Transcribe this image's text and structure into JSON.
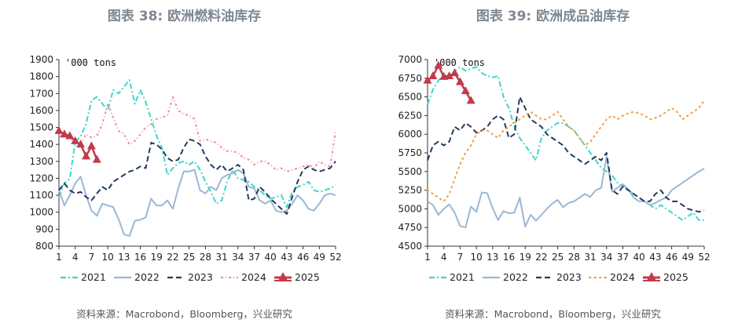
{
  "chart_data": [
    {
      "type": "line",
      "title": "图表 38: 欧洲燃料油库存",
      "unit_label": "'000 tons",
      "ylim": [
        800,
        1900
      ],
      "yticks": [
        800,
        900,
        1000,
        1100,
        1200,
        1300,
        1400,
        1500,
        1600,
        1700,
        1800,
        1900
      ],
      "xlim": [
        1,
        52
      ],
      "xticks": [
        1,
        4,
        7,
        10,
        13,
        16,
        19,
        22,
        25,
        28,
        31,
        34,
        37,
        40,
        43,
        46,
        49,
        52
      ],
      "source": "资料来源：Macrobond，Bloomberg，兴业研究",
      "series": [
        {
          "name": "2021",
          "color": "#3fd6c8",
          "style": "dashdot",
          "values": [
            1090,
            1170,
            1200,
            1410,
            1450,
            1520,
            1660,
            1680,
            1640,
            1600,
            1720,
            1700,
            1740,
            1780,
            1640,
            1720,
            1650,
            1550,
            1450,
            1380,
            1220,
            1260,
            1290,
            1300,
            1280,
            1300,
            1250,
            1180,
            1120,
            1050,
            1070,
            1180,
            1250,
            1200,
            1190,
            1180,
            1150,
            1130,
            1100,
            1080,
            1090,
            1100,
            1030,
            1120,
            1150,
            1160,
            1180,
            1130,
            1120,
            1130,
            1140,
            1160
          ]
        },
        {
          "name": "2022",
          "color": "#9ab8d5",
          "style": "solid",
          "values": [
            1130,
            1040,
            1100,
            1170,
            1210,
            1100,
            1010,
            980,
            1050,
            1040,
            1030,
            960,
            870,
            860,
            950,
            955,
            970,
            1080,
            1040,
            1040,
            1070,
            1020,
            1140,
            1240,
            1240,
            1250,
            1130,
            1110,
            1150,
            1130,
            1200,
            1220,
            1230,
            1250,
            1230,
            1150,
            1140,
            1070,
            1050,
            1070,
            1010,
            1000,
            1010,
            1050,
            1100,
            1070,
            1020,
            1010,
            1050,
            1100,
            1110,
            1100
          ]
        },
        {
          "name": "2023",
          "color": "#243a5e",
          "style": "dashed",
          "values": [
            1130,
            1170,
            1130,
            1110,
            1120,
            1090,
            1070,
            1110,
            1150,
            1130,
            1180,
            1200,
            1220,
            1240,
            1250,
            1270,
            1260,
            1410,
            1400,
            1370,
            1320,
            1300,
            1310,
            1380,
            1430,
            1420,
            1400,
            1330,
            1280,
            1250,
            1280,
            1240,
            1260,
            1280,
            1250,
            1070,
            1080,
            1150,
            1120,
            1080,
            1050,
            1020,
            990,
            1090,
            1180,
            1250,
            1270,
            1250,
            1240,
            1250,
            1260,
            1300
          ]
        },
        {
          "name": "2024",
          "color": "#f08e9c",
          "style": "dashdotdot",
          "values": [
            1450,
            1440,
            1430,
            1420,
            1400,
            1460,
            1440,
            1450,
            1520,
            1640,
            1560,
            1480,
            1460,
            1400,
            1420,
            1460,
            1500,
            1520,
            1550,
            1560,
            1570,
            1680,
            1600,
            1580,
            1570,
            1550,
            1420,
            1430,
            1420,
            1410,
            1380,
            1360,
            1360,
            1350,
            1320,
            1310,
            1280,
            1300,
            1300,
            1280,
            1250,
            1260,
            1240,
            1250,
            1260,
            1270,
            1280,
            1260,
            1300,
            1280,
            1270,
            1480
          ]
        },
        {
          "name": "2025",
          "color": "#c23b4a",
          "style": "triangle",
          "values": [
            1480,
            1460,
            1450,
            1420,
            1400,
            1330,
            1390,
            1310
          ]
        }
      ]
    },
    {
      "type": "line",
      "title": "图表 39: 欧洲成品油库存",
      "unit_label": "'000 tons",
      "ylim": [
        4500,
        7000
      ],
      "yticks": [
        4500,
        4750,
        5000,
        5250,
        5500,
        5750,
        6000,
        6250,
        6500,
        6750,
        7000
      ],
      "xlim": [
        1,
        52
      ],
      "xticks": [
        1,
        4,
        7,
        10,
        13,
        16,
        19,
        22,
        25,
        28,
        31,
        34,
        37,
        40,
        43,
        46,
        49,
        52
      ],
      "source": "资料来源：Macrobond，Bloomberg，兴业研究",
      "series": [
        {
          "name": "2021",
          "color": "#3fd6c8",
          "style": "dashdot",
          "values": [
            6400,
            6600,
            6720,
            6800,
            6750,
            6850,
            6900,
            6850,
            6880,
            6900,
            6820,
            6780,
            6760,
            6780,
            6500,
            6350,
            6100,
            5950,
            5850,
            5750,
            5650,
            5950,
            6050,
            6100,
            6150,
            6150,
            6100,
            6050,
            5950,
            5850,
            5750,
            5650,
            5550,
            5500,
            5450,
            5350,
            5300,
            5250,
            5200,
            5150,
            5100,
            5050,
            5000,
            5050,
            5000,
            4950,
            4900,
            4850,
            4900,
            4950,
            4850,
            4850
          ]
        },
        {
          "name": "2022",
          "color": "#9ab8d5",
          "style": "solid",
          "values": [
            5100,
            5050,
            4920,
            5000,
            5060,
            4950,
            4770,
            4750,
            5030,
            4960,
            5220,
            5210,
            5010,
            4850,
            4970,
            4940,
            4950,
            5150,
            4760,
            4920,
            4840,
            4920,
            5000,
            5070,
            5120,
            5020,
            5080,
            5100,
            5150,
            5200,
            5160,
            5250,
            5280,
            5700,
            5230,
            5280,
            5330,
            5260,
            5150,
            5100,
            5100,
            5050,
            5080,
            5120,
            5150,
            5250,
            5300,
            5350,
            5400,
            5450,
            5500,
            5540
          ]
        },
        {
          "name": "2023",
          "color": "#243a5e",
          "style": "dashed",
          "values": [
            5650,
            5850,
            5900,
            5850,
            5900,
            6100,
            6050,
            6150,
            6100,
            6020,
            6050,
            6100,
            6200,
            6250,
            6200,
            5950,
            6000,
            6500,
            6350,
            6200,
            6150,
            6100,
            6000,
            5950,
            5900,
            5850,
            5750,
            5700,
            5650,
            5600,
            5650,
            5700,
            5650,
            5750,
            5250,
            5200,
            5300,
            5250,
            5200,
            5150,
            5100,
            5100,
            5200,
            5250,
            5150,
            5100,
            5100,
            5050,
            5000,
            4980,
            4960,
            4980
          ]
        },
        {
          "name": "2024",
          "color": "#f0a040",
          "style": "dotted",
          "values": [
            5250,
            5200,
            5150,
            5100,
            5200,
            5400,
            5600,
            5750,
            5850,
            6000,
            6050,
            6050,
            6000,
            5950,
            6050,
            6100,
            6150,
            6200,
            6250,
            6300,
            6250,
            6200,
            6200,
            6250,
            6300,
            6200,
            6100,
            6050,
            5950,
            5850,
            5900,
            6000,
            6100,
            6200,
            6250,
            6200,
            6250,
            6280,
            6300,
            6280,
            6250,
            6200,
            6220,
            6250,
            6300,
            6350,
            6300,
            6200,
            6250,
            6300,
            6350,
            6450
          ]
        },
        {
          "name": "2025",
          "color": "#c23b4a",
          "style": "triangle",
          "values": [
            6720,
            6780,
            6920,
            6770,
            6780,
            6820,
            6700,
            6580,
            6450
          ]
        }
      ]
    }
  ]
}
